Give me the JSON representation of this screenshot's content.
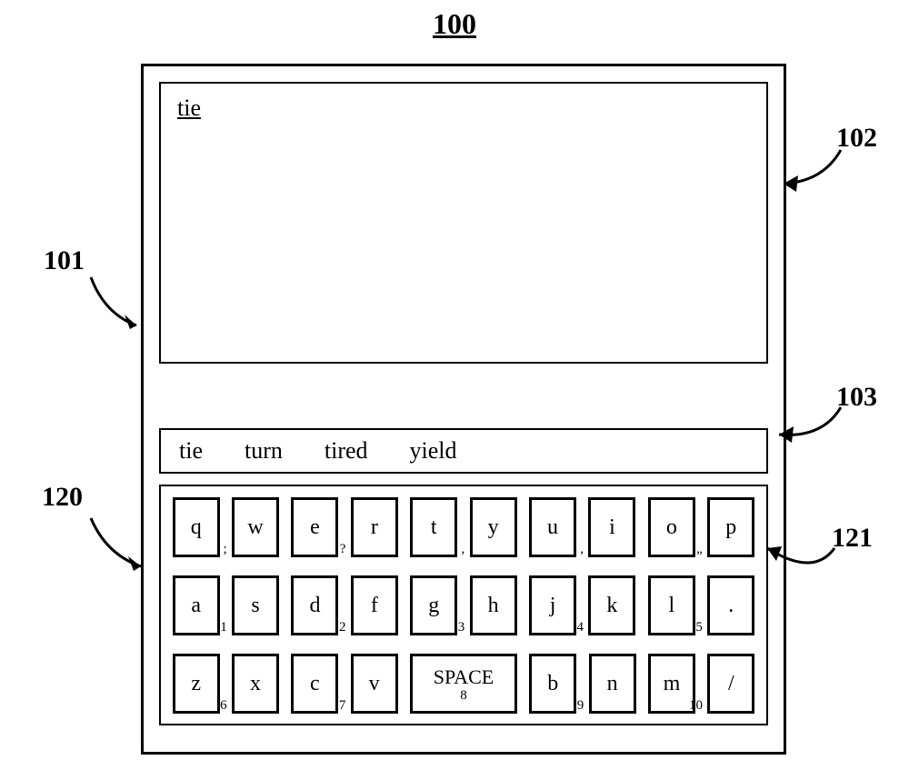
{
  "figure_number": "100",
  "device": {
    "typed_text": "tie",
    "suggestions": [
      "tie",
      "turn",
      "tired",
      "yield"
    ],
    "keyboard": {
      "row1": [
        {
          "main": "q",
          "sub": ";"
        },
        {
          "main": "w",
          "sub": ""
        },
        {
          "main": "e",
          "sub": "?"
        },
        {
          "main": "r",
          "sub": ""
        },
        {
          "main": "t",
          "sub": ","
        },
        {
          "main": "y",
          "sub": ""
        },
        {
          "main": "u",
          "sub": ","
        },
        {
          "main": "i",
          "sub": ""
        },
        {
          "main": "o",
          "sub": "„"
        },
        {
          "main": "p",
          "sub": ""
        }
      ],
      "row2": [
        {
          "main": "a",
          "sub": "1"
        },
        {
          "main": "s",
          "sub": ""
        },
        {
          "main": "d",
          "sub": "2"
        },
        {
          "main": "f",
          "sub": ""
        },
        {
          "main": "g",
          "sub": "3"
        },
        {
          "main": "h",
          "sub": ""
        },
        {
          "main": "j",
          "sub": "4"
        },
        {
          "main": "k",
          "sub": ""
        },
        {
          "main": "l",
          "sub": "5"
        },
        {
          "main": ".",
          "sub": ""
        }
      ],
      "row3": [
        {
          "main": "z",
          "sub": "6"
        },
        {
          "main": "x",
          "sub": ""
        },
        {
          "main": "c",
          "sub": "7"
        },
        {
          "main": "v",
          "sub": ""
        },
        {
          "main": "SPACE",
          "sub": "8",
          "space": true
        },
        {
          "main": "b",
          "sub": "9"
        },
        {
          "main": "n",
          "sub": ""
        },
        {
          "main": "m",
          "sub": "10"
        },
        {
          "main": "/",
          "sub": ""
        }
      ]
    }
  },
  "callouts": {
    "c100": "100",
    "c101": "101",
    "c102": "102",
    "c103": "103",
    "c120": "120",
    "c121": "121"
  },
  "style": {
    "stroke": "#000000",
    "stroke_width": 3,
    "font_family": "Times New Roman"
  }
}
